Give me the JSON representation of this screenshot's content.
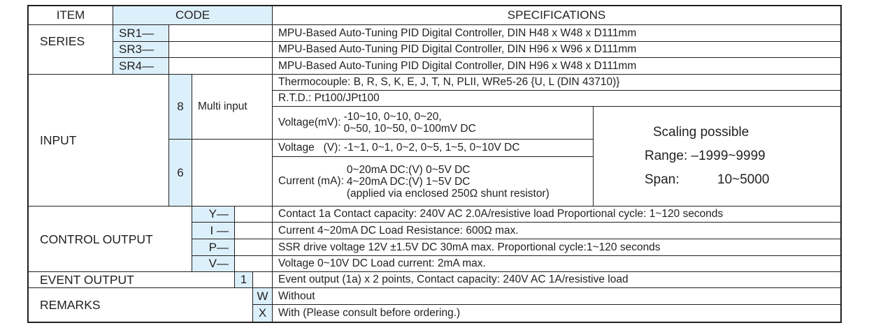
{
  "header": {
    "item": "ITEM",
    "code": "CODE",
    "specifications": "SPECIFICATIONS"
  },
  "series": {
    "label": "SERIES",
    "rows": [
      {
        "code": "SR1—",
        "spec": "MPU-Based Auto-Tuning PID Digital Controller, DIN H48 x W48 x D111mm"
      },
      {
        "code": "SR3—",
        "spec": "MPU-Based Auto-Tuning PID Digital Controller, DIN H96 x W96 x D111mm"
      },
      {
        "code": "SR4—",
        "spec": "MPU-Based Auto-Tuning PID Digital Controller, DIN H96 x W48 x D111mm"
      }
    ]
  },
  "input": {
    "label": "INPUT",
    "multi": {
      "code": "8",
      "name": "Multi input",
      "thermocouple": "Thermocouple: B, R, S, K, E, J, T, N, PLII, WRe5-26 {U, L (DIN 43710)}",
      "rtd": "R.T.D.: Pt100/JPt100",
      "voltage_mv_label": "Voltage(mV):",
      "voltage_mv_lines": [
        "-10~10, 0~10, 0~20,",
        "0~50, 10~50, 0~100mV DC"
      ]
    },
    "analog": {
      "code": "6",
      "voltage_v": "Voltage   (V): -1~1, 0~1, 0~2, 0~5, 1~5, 0~10V DC",
      "current_label": "Current (mA):",
      "current_lines": [
        "0~20mA DC:(V) 0~5V DC",
        "4~20mA DC:(V) 1~5V DC",
        "(applied via enclosed 250Ω shunt resistor)"
      ]
    },
    "scaling": {
      "title": "Scaling possible",
      "range": "Range: –1999~9999",
      "span_label": "Span:",
      "span_value": "10~5000"
    }
  },
  "control_output": {
    "label": "CONTROL OUTPUT",
    "rows": [
      {
        "code": "Y—",
        "spec": "Contact 1a  Contact capacity: 240V AC 2.0A/resistive load  Proportional cycle: 1~120 seconds"
      },
      {
        "code": "I —",
        "spec": "Current 4~20mA DC   Load Resistance: 600Ω max."
      },
      {
        "code": "P—",
        "spec": "SSR drive voltage 12V ±1.5V DC 30mA max.   Proportional cycle:1~120 seconds"
      },
      {
        "code": "V—",
        "spec": "Voltage 0~10V DC  Load current: 2mA max."
      }
    ]
  },
  "event_output": {
    "label": "EVENT OUTPUT",
    "code": "1",
    "spec": "Event output  (1a) x 2 points, Contact capacity: 240V AC 1A/resistive load"
  },
  "remarks": {
    "label": "REMARKS",
    "rows": [
      {
        "code": "W",
        "spec": "Without"
      },
      {
        "code": "X",
        "spec": "With (Please consult before ordering.)"
      }
    ]
  },
  "colors": {
    "code_fill": "#dcf0fb",
    "border": "#231f20"
  }
}
